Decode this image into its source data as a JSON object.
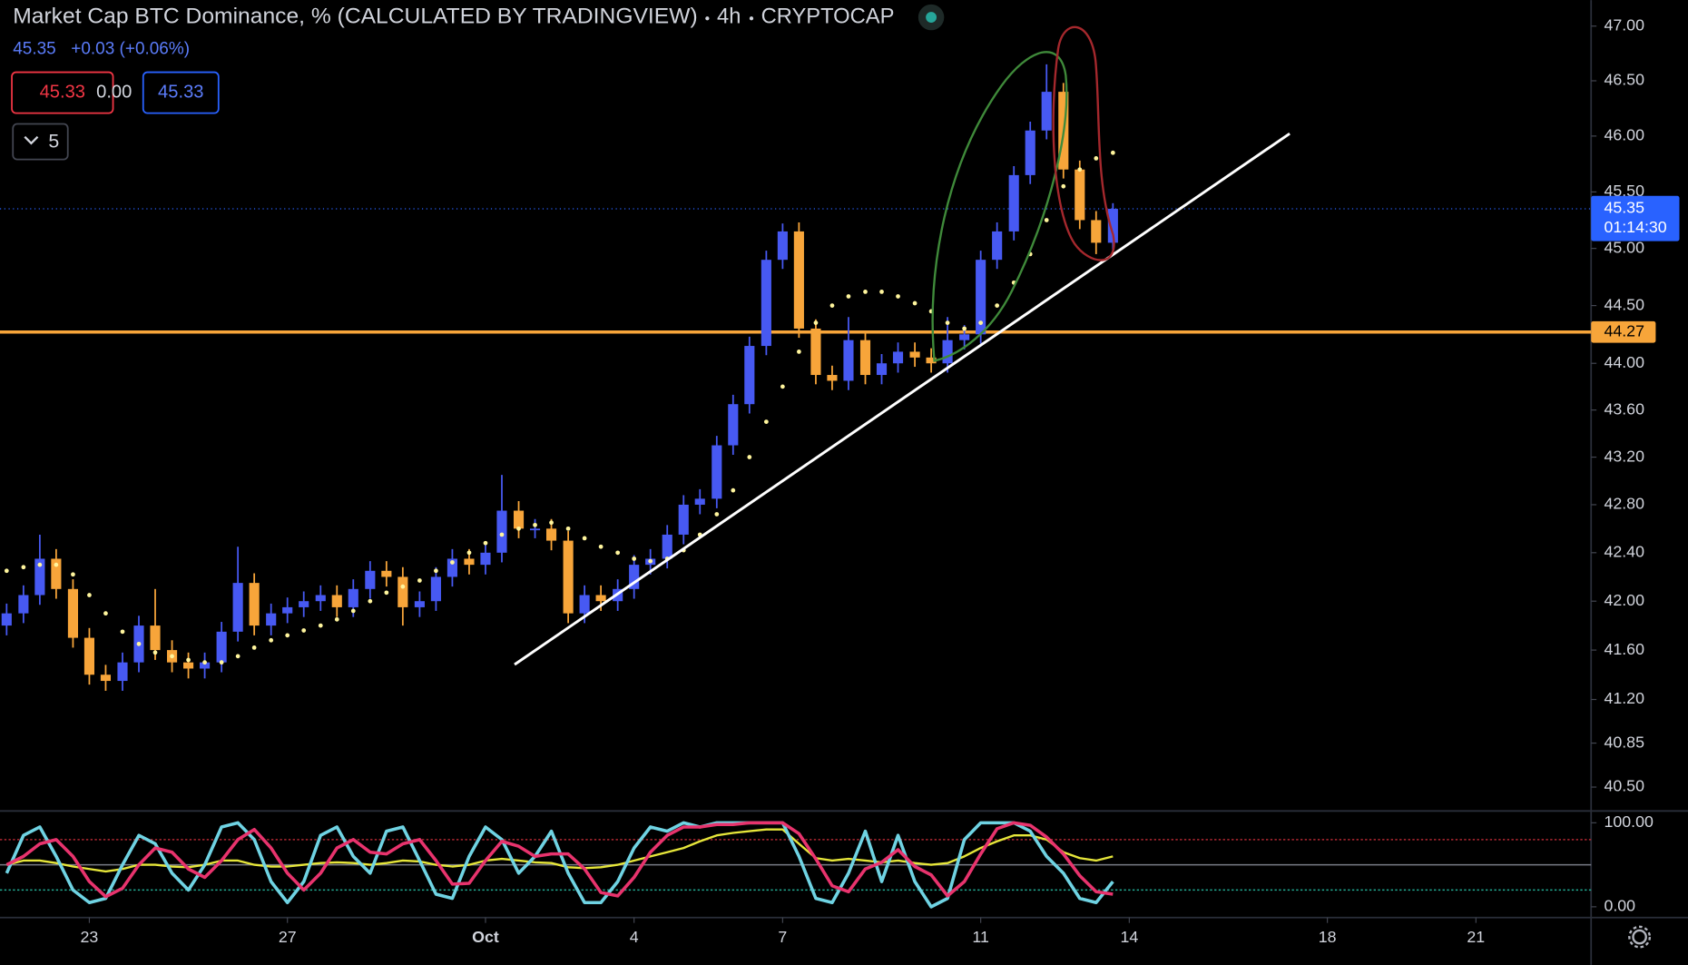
{
  "chart_data": {
    "type": "candlestick",
    "title": "Market Cap BTC Dominance, % (CALCULATED BY TRADINGVIEW)",
    "interval": "4h",
    "source": "CRYPTOCAP",
    "last": 45.35,
    "change": "+0.03 (+0.06%)",
    "countdown": "01:14:30",
    "inputs": [
      "45.33",
      "0.00",
      "45.33"
    ],
    "collapsed": 5,
    "log_scale": true,
    "up_color": "#4759f2",
    "down_color": "#f7a53a",
    "xlim": [
      -1.804,
      30.326
    ],
    "xticks": [
      {
        "value": 0,
        "label": "23"
      },
      {
        "value": 4,
        "label": "27"
      },
      {
        "value": 8,
        "label": "Oct"
      },
      {
        "value": 11,
        "label": "4"
      },
      {
        "value": 14,
        "label": "7"
      },
      {
        "value": 18,
        "label": "11"
      },
      {
        "value": 21,
        "label": "14"
      },
      {
        "value": 25,
        "label": "18"
      },
      {
        "value": 28,
        "label": "21"
      }
    ],
    "ylim": [
      40.32,
      47.24
    ],
    "yticks": [
      {
        "value": 47,
        "label": "47.00"
      },
      {
        "value": 46.5,
        "label": "46.50"
      },
      {
        "value": 46,
        "label": "46.00"
      },
      {
        "value": 45.5,
        "label": "45.50"
      },
      {
        "value": 45,
        "label": "45.00"
      },
      {
        "value": 44.5,
        "label": "44.50"
      },
      {
        "value": 44,
        "label": "44.00"
      },
      {
        "value": 43.6,
        "label": "43.60"
      },
      {
        "value": 43.2,
        "label": "43.20"
      },
      {
        "value": 42.8,
        "label": "42.80"
      },
      {
        "value": 42.4,
        "label": "42.40"
      },
      {
        "value": 42,
        "label": "42.00"
      },
      {
        "value": 41.6,
        "label": "41.60"
      },
      {
        "value": 41.2,
        "label": "41.20"
      },
      {
        "value": 40.85,
        "label": "40.85"
      },
      {
        "value": 40.5,
        "label": "40.50"
      }
    ],
    "x": [
      -1.67,
      -1.33,
      -1,
      -0.67,
      -0.33,
      0,
      0.33,
      0.67,
      1,
      1.33,
      1.67,
      2,
      2.33,
      2.67,
      3,
      3.33,
      3.67,
      4,
      4.33,
      4.67,
      5,
      5.33,
      5.67,
      6,
      6.33,
      6.67,
      7,
      7.33,
      7.67,
      8,
      8.33,
      8.67,
      9,
      9.33,
      9.67,
      10,
      10.33,
      10.67,
      11,
      11.33,
      11.67,
      12,
      12.33,
      12.67,
      13,
      13.33,
      13.67,
      14,
      14.33,
      14.67,
      15,
      15.33,
      15.67,
      16,
      16.33,
      16.67,
      17,
      17.33,
      17.67,
      18,
      18.33,
      18.67,
      19,
      19.33,
      19.67,
      20,
      20.33,
      20.67
    ],
    "open": [
      41.8,
      41.9,
      42.05,
      42.35,
      42.1,
      41.7,
      41.4,
      41.35,
      41.5,
      41.8,
      41.6,
      41.5,
      41.45,
      41.5,
      41.75,
      42.15,
      41.8,
      41.9,
      41.95,
      42.0,
      42.05,
      41.95,
      42.1,
      42.25,
      42.2,
      41.95,
      42.0,
      42.2,
      42.35,
      42.3,
      42.4,
      42.75,
      42.6,
      42.6,
      42.5,
      41.9,
      42.05,
      42.0,
      42.1,
      42.3,
      42.35,
      42.55,
      42.8,
      42.85,
      43.3,
      43.65,
      44.15,
      44.9,
      45.15,
      44.3,
      43.9,
      43.85,
      44.2,
      43.9,
      44.0,
      44.1,
      44.05,
      44.0,
      44.2,
      44.25,
      44.9,
      45.15,
      45.65,
      46.05,
      46.4,
      45.7,
      45.25,
      45.05
    ],
    "high": [
      41.98,
      42.13,
      42.55,
      42.43,
      42.18,
      41.78,
      41.48,
      41.58,
      41.88,
      42.1,
      41.68,
      41.58,
      41.58,
      41.83,
      42.45,
      42.23,
      41.98,
      42.03,
      42.08,
      42.13,
      42.13,
      42.18,
      42.33,
      42.33,
      42.28,
      42.08,
      42.28,
      42.43,
      42.43,
      42.48,
      43.05,
      42.83,
      42.68,
      42.68,
      42.58,
      42.13,
      42.13,
      42.18,
      42.38,
      42.43,
      42.63,
      42.88,
      42.93,
      43.38,
      43.73,
      44.23,
      44.98,
      45.22,
      45.23,
      44.38,
      43.98,
      44.4,
      44.28,
      44.08,
      44.18,
      44.18,
      44.13,
      44.4,
      44.33,
      44.98,
      45.23,
      45.73,
      46.13,
      46.65,
      46.48,
      45.78,
      45.33,
      45.4
    ],
    "low": [
      41.72,
      41.82,
      41.97,
      42.02,
      41.62,
      41.32,
      41.27,
      41.27,
      41.42,
      41.52,
      41.42,
      41.37,
      41.37,
      41.42,
      41.67,
      41.72,
      41.72,
      41.82,
      41.87,
      41.92,
      41.87,
      41.87,
      42.02,
      42.12,
      41.8,
      41.87,
      41.92,
      42.12,
      42.22,
      42.22,
      42.32,
      42.52,
      42.52,
      42.42,
      41.82,
      41.82,
      41.92,
      41.92,
      42.02,
      42.22,
      42.27,
      42.47,
      42.72,
      42.77,
      43.22,
      43.57,
      44.07,
      44.82,
      44.22,
      43.82,
      43.77,
      43.77,
      43.82,
      43.82,
      43.92,
      43.97,
      43.92,
      43.92,
      44.12,
      44.17,
      44.82,
      45.07,
      45.57,
      45.97,
      45.62,
      45.17,
      44.95,
      44.97
    ],
    "close": [
      41.9,
      42.05,
      42.35,
      42.1,
      41.7,
      41.4,
      41.35,
      41.5,
      41.8,
      41.6,
      41.5,
      41.45,
      41.5,
      41.75,
      42.15,
      41.8,
      41.9,
      41.95,
      42.0,
      42.05,
      41.95,
      42.1,
      42.25,
      42.2,
      41.95,
      42.0,
      42.2,
      42.35,
      42.3,
      42.4,
      42.75,
      42.6,
      42.6,
      42.5,
      41.9,
      42.05,
      42.0,
      42.1,
      42.3,
      42.35,
      42.55,
      42.8,
      42.85,
      43.3,
      43.65,
      44.15,
      44.9,
      45.15,
      44.3,
      43.9,
      43.85,
      44.2,
      43.9,
      44.0,
      44.1,
      44.05,
      44.0,
      44.2,
      44.25,
      44.9,
      45.15,
      45.65,
      46.05,
      46.4,
      45.7,
      45.25,
      45.05,
      45.35
    ],
    "overlay": {
      "color": "#fff59d",
      "values": [
        42.25,
        42.28,
        42.3,
        42.3,
        42.22,
        42.05,
        41.9,
        41.75,
        41.65,
        41.58,
        41.55,
        41.52,
        41.5,
        41.5,
        41.55,
        41.62,
        41.68,
        41.72,
        41.76,
        41.8,
        41.85,
        41.92,
        42.0,
        42.07,
        42.12,
        42.17,
        42.25,
        42.32,
        42.4,
        42.48,
        42.55,
        42.6,
        42.63,
        42.65,
        42.6,
        42.52,
        42.45,
        42.4,
        42.35,
        42.33,
        42.35,
        42.42,
        42.55,
        42.72,
        42.92,
        43.2,
        43.5,
        43.8,
        44.1,
        44.35,
        44.5,
        44.58,
        44.62,
        44.62,
        44.58,
        44.52,
        44.45,
        44.35,
        44.3,
        44.35,
        44.5,
        44.7,
        44.95,
        45.25,
        45.55,
        45.7,
        45.8,
        45.85
      ]
    },
    "hline": {
      "value": 44.27,
      "color": "#f7a53a"
    },
    "stoch": {
      "ylim": [
        0,
        100
      ],
      "yticks": [
        {
          "value": 100,
          "label": "100.00"
        },
        {
          "value": 0,
          "label": "0.00"
        }
      ],
      "levels": [
        {
          "value": 80,
          "color": "#b22833"
        },
        {
          "value": 50,
          "color": "#787b86"
        },
        {
          "value": 20,
          "color": "#22ab94"
        }
      ],
      "series": [
        {
          "color": "#e6e63a",
          "values": [
            50,
            55,
            55,
            52,
            48,
            45,
            42,
            45,
            50,
            50,
            48,
            47,
            50,
            55,
            55,
            50,
            48,
            48,
            50,
            52,
            53,
            52,
            50,
            52,
            55,
            54,
            50,
            48,
            50,
            55,
            57,
            55,
            53,
            52,
            47,
            46,
            47,
            50,
            55,
            60,
            65,
            70,
            78,
            85,
            88,
            90,
            92,
            92,
            75,
            58,
            55,
            57,
            55,
            53,
            55,
            52,
            50,
            52,
            60,
            70,
            78,
            85,
            85,
            80,
            65,
            58,
            55,
            60
          ]
        },
        {
          "color": "#6fd3e3",
          "values": [
            40,
            85,
            95,
            60,
            20,
            5,
            10,
            50,
            85,
            75,
            40,
            20,
            50,
            95,
            100,
            80,
            30,
            5,
            30,
            85,
            95,
            60,
            40,
            90,
            95,
            55,
            15,
            10,
            60,
            95,
            80,
            40,
            60,
            90,
            40,
            5,
            5,
            30,
            70,
            95,
            90,
            100,
            95,
            100,
            100,
            100,
            100,
            100,
            60,
            10,
            5,
            40,
            90,
            30,
            85,
            30,
            0,
            10,
            80,
            100,
            100,
            100,
            90,
            60,
            40,
            10,
            5,
            30
          ]
        },
        {
          "color": "#e8336d",
          "values": [
            50,
            60,
            75,
            80,
            60,
            30,
            12,
            22,
            50,
            70,
            65,
            45,
            35,
            55,
            80,
            92,
            70,
            40,
            20,
            40,
            70,
            80,
            65,
            63,
            75,
            80,
            55,
            27,
            28,
            55,
            78,
            72,
            60,
            63,
            63,
            45,
            17,
            13,
            35,
            65,
            85,
            95,
            95,
            98,
            98,
            100,
            100,
            100,
            87,
            57,
            25,
            18,
            45,
            53,
            68,
            48,
            38,
            13,
            30,
            63,
            93,
            100,
            97,
            83,
            63,
            37,
            18,
            15
          ]
        }
      ]
    }
  }
}
